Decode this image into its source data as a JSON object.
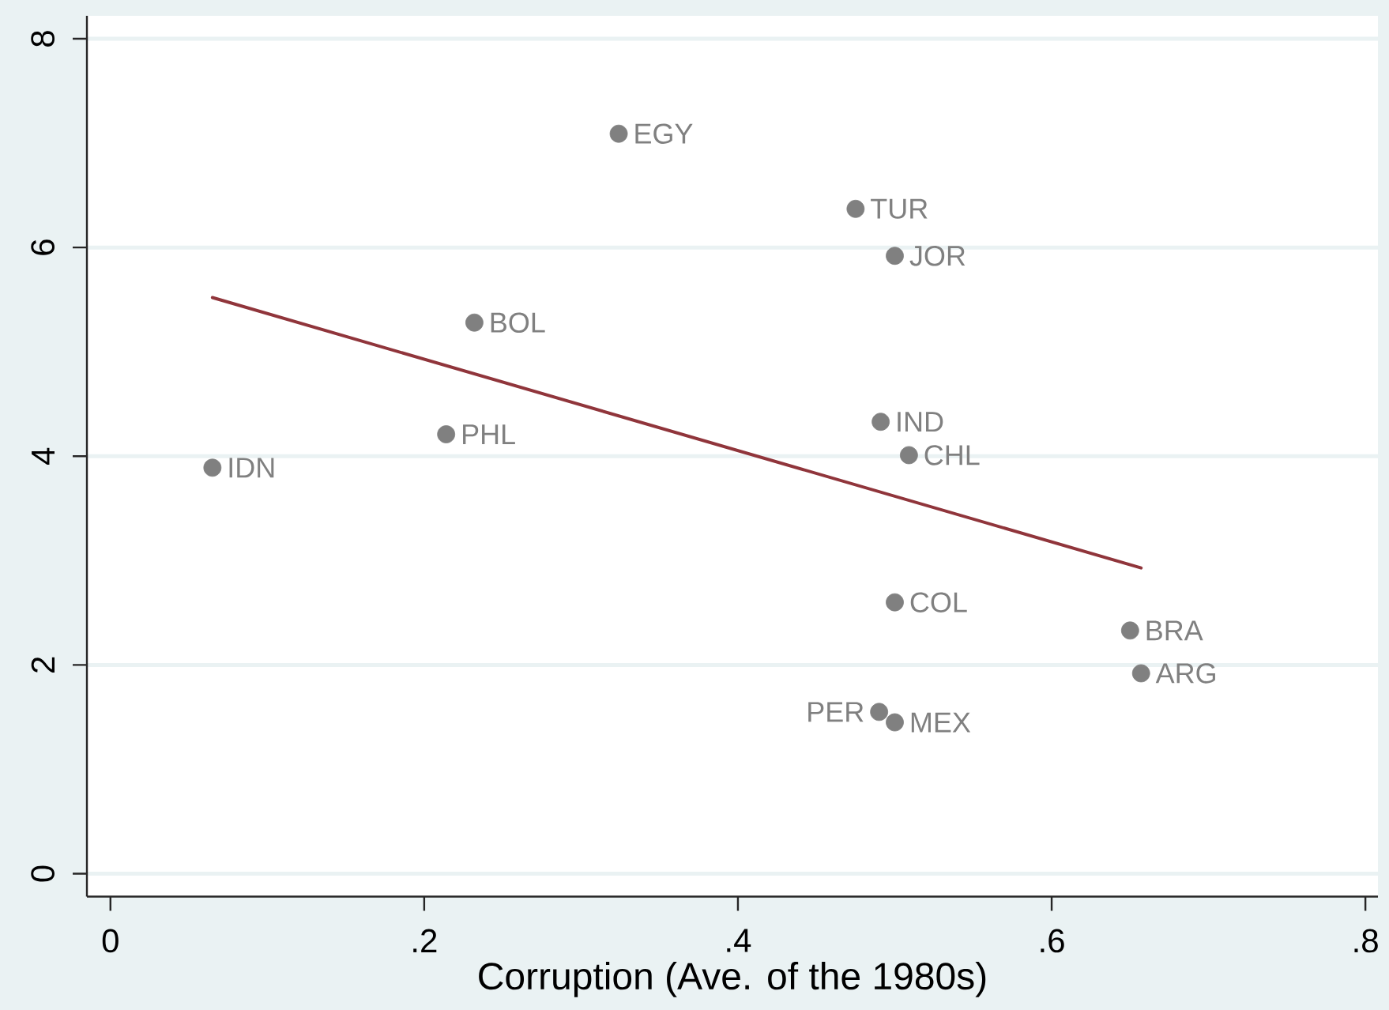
{
  "chart_data": {
    "type": "scatter",
    "xlabel": "Corruption (Ave. of the 1980s)",
    "series": [
      {
        "color": "#808080",
        "marker": "circle",
        "x": [
          0.065,
          0.214,
          0.232,
          0.324,
          0.475,
          0.5,
          0.491,
          0.509,
          0.5,
          0.65,
          0.657,
          0.49,
          0.5
        ],
        "values": [
          3.89,
          4.21,
          5.28,
          7.09,
          6.37,
          5.92,
          4.33,
          4.01,
          2.6,
          2.33,
          1.92,
          1.55,
          1.45
        ]
      },
      {
        "type": "line",
        "color": "#90353b",
        "line_style": "solid",
        "x": [
          0.065,
          0.657
        ],
        "values": [
          5.52,
          2.93
        ]
      }
    ],
    "annotations": [
      {
        "text": "IDN",
        "x": 0.065,
        "y": 3.89
      },
      {
        "text": "PHL",
        "x": 0.214,
        "y": 4.21
      },
      {
        "text": "BOL",
        "x": 0.232,
        "y": 5.28
      },
      {
        "text": "EGY",
        "x": 0.324,
        "y": 7.09
      },
      {
        "text": "TUR",
        "x": 0.475,
        "y": 6.37
      },
      {
        "text": "JOR",
        "x": 0.5,
        "y": 5.92
      },
      {
        "text": "IND",
        "x": 0.491,
        "y": 4.33
      },
      {
        "text": "CHL",
        "x": 0.509,
        "y": 4.01
      },
      {
        "text": "COL",
        "x": 0.5,
        "y": 2.6
      },
      {
        "text": "BRA",
        "x": 0.65,
        "y": 2.33
      },
      {
        "text": "ARG",
        "x": 0.657,
        "y": 1.92
      },
      {
        "text": "PER",
        "x": 0.49,
        "y": 1.55
      },
      {
        "text": "MEX",
        "x": 0.5,
        "y": 1.45
      }
    ],
    "xlim": [
      -0.015,
      0.808
    ],
    "ylim": [
      -0.22,
      8.22
    ],
    "xticks": [
      0,
      {
        "value": 0.2,
        "label": ".2"
      },
      {
        "value": 0.4,
        "label": ".4"
      },
      {
        "value": 0.6,
        "label": ".6"
      },
      {
        "value": 0.8,
        "label": ".8"
      }
    ],
    "yticks": [
      0,
      2,
      4,
      6,
      8
    ],
    "grid": "y"
  }
}
